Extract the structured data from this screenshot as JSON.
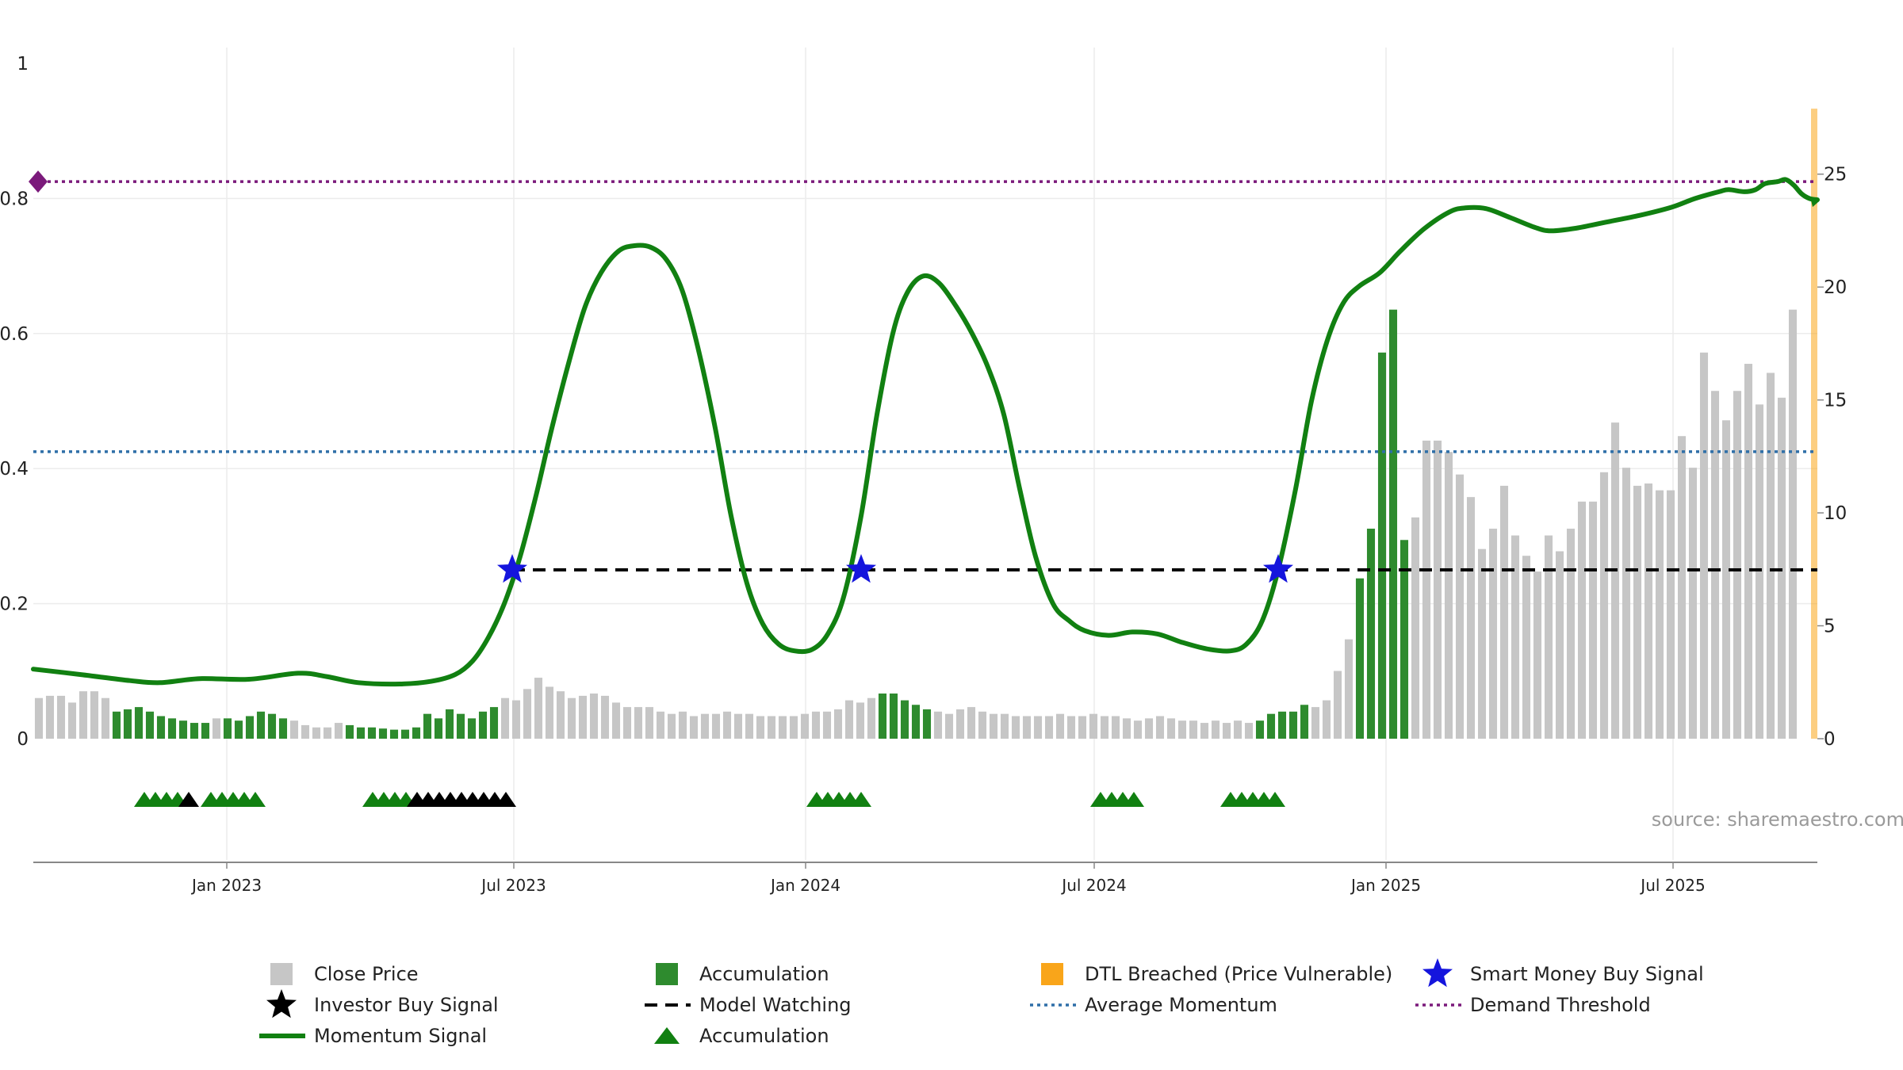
{
  "chart_data": {
    "type": "line",
    "source_note": "source: sharemaestro.com",
    "y_left": {
      "range": [
        0,
        1
      ],
      "ticks": [
        "0",
        "0.2",
        "0.4",
        "0.6",
        "0.8",
        "1"
      ]
    },
    "y_right": {
      "range": [
        0,
        28.5
      ],
      "ticks": [
        "0",
        "5",
        "10",
        "15",
        "20",
        "25"
      ]
    },
    "x_axis": {
      "start": "2022-09-01",
      "end": "2025-09-30",
      "ticks": [
        {
          "date": "2023-01-01",
          "label": "Jan 2023"
        },
        {
          "date": "2023-07-01",
          "label": "Jul 2023"
        },
        {
          "date": "2024-01-01",
          "label": "Jan 2024"
        },
        {
          "date": "2024-07-01",
          "label": "Jul 2024"
        },
        {
          "date": "2025-01-01",
          "label": "Jan 2025"
        },
        {
          "date": "2025-07-01",
          "label": "Jul 2025"
        }
      ]
    },
    "reference_lines": {
      "average_momentum": 0.425,
      "demand_threshold": 0.825,
      "model_watching": 0.25
    },
    "colors": {
      "momentum": "#118011",
      "close_price": "#c6c6c6",
      "accumulation": "#2e8b2e",
      "dtl_breached": "#f9a51a",
      "smart_money": "#1515dd",
      "investor_buy": "#000000",
      "average_momentum": "#2f6fa8",
      "demand_threshold": "#7b1a7b",
      "model_watching": "#000000",
      "triangle_green": "#118011"
    },
    "momentum_series": [
      [
        "2022-09-01",
        0.103
      ],
      [
        "2022-10-01",
        0.095
      ],
      [
        "2022-11-01",
        0.086
      ],
      [
        "2022-11-20",
        0.083
      ],
      [
        "2022-12-15",
        0.089
      ],
      [
        "2023-01-15",
        0.088
      ],
      [
        "2023-02-15",
        0.097
      ],
      [
        "2023-03-05",
        0.092
      ],
      [
        "2023-03-25",
        0.083
      ],
      [
        "2023-04-20",
        0.081
      ],
      [
        "2023-05-10",
        0.085
      ],
      [
        "2023-05-25",
        0.095
      ],
      [
        "2023-06-05",
        0.115
      ],
      [
        "2023-06-15",
        0.15
      ],
      [
        "2023-06-25",
        0.2
      ],
      [
        "2023-07-05",
        0.27
      ],
      [
        "2023-07-15",
        0.36
      ],
      [
        "2023-07-25",
        0.46
      ],
      [
        "2023-08-05",
        0.56
      ],
      [
        "2023-08-15",
        0.64
      ],
      [
        "2023-08-25",
        0.69
      ],
      [
        "2023-09-05",
        0.722
      ],
      [
        "2023-09-15",
        0.73
      ],
      [
        "2023-09-25",
        0.728
      ],
      [
        "2023-10-05",
        0.71
      ],
      [
        "2023-10-15",
        0.665
      ],
      [
        "2023-10-25",
        0.58
      ],
      [
        "2023-11-05",
        0.46
      ],
      [
        "2023-11-15",
        0.33
      ],
      [
        "2023-11-25",
        0.23
      ],
      [
        "2023-12-05",
        0.17
      ],
      [
        "2023-12-15",
        0.14
      ],
      [
        "2023-12-25",
        0.13
      ],
      [
        "2024-01-05",
        0.132
      ],
      [
        "2024-01-15",
        0.155
      ],
      [
        "2024-01-25",
        0.21
      ],
      [
        "2024-02-05",
        0.33
      ],
      [
        "2024-02-15",
        0.48
      ],
      [
        "2024-02-25",
        0.6
      ],
      [
        "2024-03-05",
        0.66
      ],
      [
        "2024-03-15",
        0.685
      ],
      [
        "2024-03-25",
        0.675
      ],
      [
        "2024-04-05",
        0.64
      ],
      [
        "2024-04-15",
        0.6
      ],
      [
        "2024-04-25",
        0.55
      ],
      [
        "2024-05-05",
        0.48
      ],
      [
        "2024-05-15",
        0.37
      ],
      [
        "2024-05-25",
        0.27
      ],
      [
        "2024-06-05",
        0.2
      ],
      [
        "2024-06-15",
        0.175
      ],
      [
        "2024-06-25",
        0.16
      ],
      [
        "2024-07-10",
        0.153
      ],
      [
        "2024-07-25",
        0.158
      ],
      [
        "2024-08-10",
        0.155
      ],
      [
        "2024-08-25",
        0.143
      ],
      [
        "2024-09-10",
        0.133
      ],
      [
        "2024-09-25",
        0.13
      ],
      [
        "2024-10-05",
        0.14
      ],
      [
        "2024-10-15",
        0.175
      ],
      [
        "2024-10-25",
        0.25
      ],
      [
        "2024-11-05",
        0.37
      ],
      [
        "2024-11-15",
        0.5
      ],
      [
        "2024-11-25",
        0.59
      ],
      [
        "2024-12-05",
        0.645
      ],
      [
        "2024-12-15",
        0.67
      ],
      [
        "2024-12-28",
        0.69
      ],
      [
        "2025-01-10",
        0.722
      ],
      [
        "2025-01-25",
        0.755
      ],
      [
        "2025-02-10",
        0.78
      ],
      [
        "2025-02-20",
        0.786
      ],
      [
        "2025-03-05",
        0.785
      ],
      [
        "2025-03-20",
        0.772
      ],
      [
        "2025-04-05",
        0.757
      ],
      [
        "2025-04-15",
        0.752
      ],
      [
        "2025-05-01",
        0.756
      ],
      [
        "2025-05-20",
        0.765
      ],
      [
        "2025-06-10",
        0.775
      ],
      [
        "2025-06-30",
        0.787
      ],
      [
        "2025-07-15",
        0.8
      ],
      [
        "2025-07-30",
        0.81
      ],
      [
        "2025-08-05",
        0.813
      ],
      [
        "2025-08-15",
        0.81
      ],
      [
        "2025-08-22",
        0.813
      ],
      [
        "2025-08-28",
        0.822
      ],
      [
        "2025-09-05",
        0.825
      ],
      [
        "2025-09-10",
        0.828
      ],
      [
        "2025-09-15",
        0.82
      ],
      [
        "2025-09-20",
        0.807
      ],
      [
        "2025-09-25",
        0.8
      ],
      [
        "2025-09-30",
        0.798
      ]
    ],
    "price_bars_start": "2022-09-01",
    "price_bars_step_days": 7,
    "price_bars": [
      1.8,
      1.9,
      1.9,
      1.6,
      2.1,
      2.1,
      1.8,
      1.2,
      1.3,
      1.4,
      1.2,
      1.0,
      0.9,
      0.8,
      0.7,
      0.7,
      0.9,
      0.9,
      0.8,
      1.0,
      1.2,
      1.1,
      0.9,
      0.8,
      0.6,
      0.5,
      0.5,
      0.7,
      0.6,
      0.5,
      0.5,
      0.45,
      0.4,
      0.4,
      0.5,
      1.1,
      0.9,
      1.3,
      1.1,
      0.9,
      1.2,
      1.4,
      1.8,
      1.7,
      2.2,
      2.7,
      2.3,
      2.1,
      1.8,
      1.9,
      2.0,
      1.9,
      1.6,
      1.4,
      1.4,
      1.4,
      1.2,
      1.1,
      1.2,
      1.0,
      1.1,
      1.1,
      1.2,
      1.1,
      1.1,
      1.0,
      1.0,
      1.0,
      1.0,
      1.1,
      1.2,
      1.2,
      1.3,
      1.7,
      1.6,
      1.8,
      2.0,
      2.0,
      1.7,
      1.5,
      1.3,
      1.2,
      1.1,
      1.3,
      1.4,
      1.2,
      1.1,
      1.1,
      1.0,
      1.0,
      1.0,
      1.0,
      1.1,
      1.0,
      1.0,
      1.1,
      1.0,
      1.0,
      0.9,
      0.8,
      0.9,
      1.0,
      0.9,
      0.8,
      0.8,
      0.7,
      0.8,
      0.7,
      0.8,
      0.7,
      0.8,
      1.1,
      1.2,
      1.2,
      1.5,
      1.4,
      1.7,
      3.0,
      4.4,
      7.1,
      9.3,
      17.1,
      19.0,
      8.8,
      9.8,
      13.2,
      13.2,
      12.7,
      11.7,
      10.7,
      8.4,
      9.3,
      11.2,
      9.0,
      8.1,
      7.4,
      9.0,
      8.3,
      9.3,
      10.5,
      10.5,
      11.8,
      14.0,
      12.0,
      11.2,
      11.3,
      11.0,
      11.0,
      13.4,
      12.0,
      17.1,
      15.4,
      14.1,
      15.4,
      16.6,
      14.8,
      16.2,
      15.1,
      19.0
    ],
    "accumulation_bar_ranges": [
      [
        7,
        15
      ],
      [
        17,
        22
      ],
      [
        28,
        41
      ],
      [
        76,
        80
      ],
      [
        110,
        114
      ],
      [
        119,
        123
      ]
    ],
    "dtl_band": {
      "start": "2025-09-26",
      "end": "2025-09-30"
    },
    "smart_money_signals": [
      [
        "2023-06-30",
        0.25
      ],
      [
        "2024-02-05",
        0.25
      ],
      [
        "2024-10-25",
        0.25
      ]
    ],
    "accumulation_triangles": [
      "2022-11-10",
      "2022-11-17",
      "2022-11-24",
      "2022-12-01",
      "2022-12-22",
      "2022-12-29",
      "2023-01-05",
      "2023-01-12",
      "2023-01-19",
      "2023-04-03",
      "2023-04-10",
      "2023-04-17",
      "2023-04-24",
      "2024-01-08",
      "2024-01-15",
      "2024-01-22",
      "2024-01-29",
      "2024-02-05",
      "2024-07-05",
      "2024-07-12",
      "2024-07-19",
      "2024-07-26",
      "2024-09-25",
      "2024-10-02",
      "2024-10-09",
      "2024-10-16",
      "2024-10-23"
    ],
    "investor_buy_triangles": [
      "2022-12-08",
      "2023-05-01",
      "2023-05-08",
      "2023-05-15",
      "2023-05-22",
      "2023-05-29",
      "2023-06-05",
      "2023-06-12",
      "2023-06-19",
      "2023-06-26"
    ],
    "demand_marker": {
      "date": "2022-09-01",
      "value": 0.825
    },
    "legend": [
      {
        "key": "close_price",
        "label": "Close Price",
        "symbol": "square-gray"
      },
      {
        "key": "accumulation_bar",
        "label": "Accumulation",
        "symbol": "square-green"
      },
      {
        "key": "dtl_breached",
        "label": "DTL Breached (Price Vulnerable)",
        "symbol": "square-orange"
      },
      {
        "key": "smart_money",
        "label": "Smart Money Buy Signal",
        "symbol": "star-blue"
      },
      {
        "key": "investor_buy",
        "label": "Investor Buy Signal",
        "symbol": "star-black"
      },
      {
        "key": "model_watching",
        "label": "Model Watching",
        "symbol": "dash-black"
      },
      {
        "key": "average_momentum",
        "label": "Average Momentum",
        "symbol": "dot-blue"
      },
      {
        "key": "demand_threshold",
        "label": "Demand Threshold",
        "symbol": "dot-purple"
      },
      {
        "key": "momentum",
        "label": "Momentum Signal",
        "symbol": "line-green"
      },
      {
        "key": "accumulation_tri",
        "label": "Accumulation",
        "symbol": "triangle-green"
      }
    ]
  }
}
